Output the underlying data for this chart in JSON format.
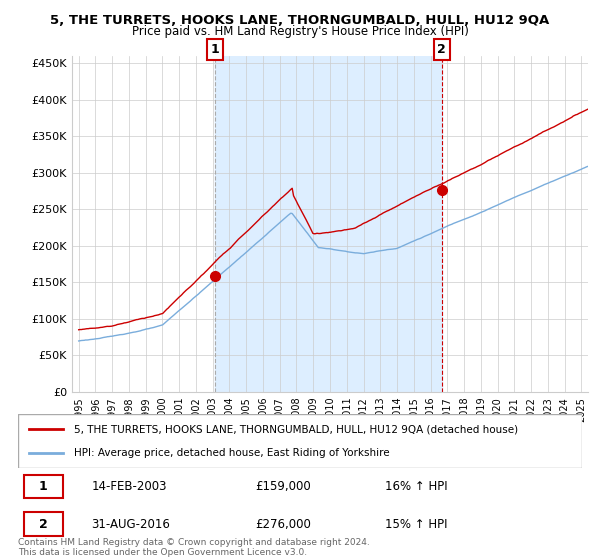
{
  "title": "5, THE TURRETS, HOOKS LANE, THORNGUMBALD, HULL, HU12 9QA",
  "subtitle": "Price paid vs. HM Land Registry's House Price Index (HPI)",
  "ylabel_ticks": [
    "£0",
    "£50K",
    "£100K",
    "£150K",
    "£200K",
    "£250K",
    "£300K",
    "£350K",
    "£400K",
    "£450K"
  ],
  "ytick_values": [
    0,
    50000,
    100000,
    150000,
    200000,
    250000,
    300000,
    350000,
    400000,
    450000
  ],
  "ylim": [
    0,
    460000
  ],
  "xlim_start": 1994.6,
  "xlim_end": 2025.4,
  "sale1_x": 2003.12,
  "sale1_y": 159000,
  "sale2_x": 2016.67,
  "sale2_y": 276000,
  "legend_label_red": "5, THE TURRETS, HOOKS LANE, THORNGUMBALD, HULL, HU12 9QA (detached house)",
  "legend_label_blue": "HPI: Average price, detached house, East Riding of Yorkshire",
  "annotation1_label": "1",
  "annotation1_date": "14-FEB-2003",
  "annotation1_price": "£159,000",
  "annotation1_hpi": "16% ↑ HPI",
  "annotation2_label": "2",
  "annotation2_date": "31-AUG-2016",
  "annotation2_price": "£276,000",
  "annotation2_hpi": "15% ↑ HPI",
  "footer": "Contains HM Land Registry data © Crown copyright and database right 2024.\nThis data is licensed under the Open Government Licence v3.0.",
  "red_color": "#cc0000",
  "blue_color": "#7aaddc",
  "shade_color": "#ddeeff",
  "vline1_color": "#aaaaaa",
  "vline2_color": "#cc0000",
  "background_color": "#ffffff",
  "grid_color": "#cccccc"
}
